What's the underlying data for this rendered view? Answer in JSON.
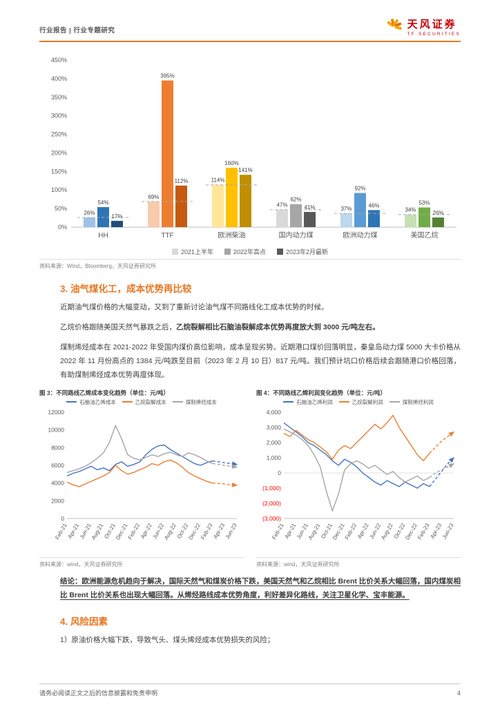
{
  "header": {
    "breadcrumb": "行业报告 | 行业专题研究",
    "brand_name": "天风证券",
    "brand_sub": "TF SECURITIES"
  },
  "bar_source": "资料来源：Wind，Bloomberg，天风证券研究所",
  "section3": {
    "title": "3. 油气煤化工，成本优势再比较",
    "para1": "近期油气煤价格的大幅变动，又到了重新讨论油气煤不同路线化工成本优势的时候。",
    "para2_normal": "乙烷价格跟随美国天然气暴跌之后，",
    "para2_bold": "乙烷裂解相比石脑油裂解成本优势再度放大到 3000 元/吨左右。",
    "para3": "煤制烯烃成本在 2021-2022 年受国内煤价高位影响，成本呈现劣势。近期港口煤价回落明显，秦皇岛动力煤 5000 大卡价格从 2022 年 11 月份高点的 1384 元/吨跌至目前（2023 年 2 月 10 日）817 元/吨。我们预计坑口价格后续会跟随港口价格回落，有助煤制烯烃成本优势再度体现。"
  },
  "fig3": {
    "caption": "图 3：不同路线乙烯成本变化趋势（单位：元/吨）",
    "source": "资料来源：wind，天风证券研究所"
  },
  "fig4": {
    "caption": "图 4：不同路线乙烯利润变化趋势（单位：元/吨）",
    "source": "资料来源：wind，天风证券研究所"
  },
  "conclusion": "结论：欧洲能源危机趋向于解决，国际天然气和煤炭价格下跌，美国天然气和乙烷相比 Brent 比价关系大幅回落，国内煤炭相比 Brent 比价关系也出现大幅回落。从烯烃路线成本优势角度，利好差异化路线，关注卫星化学、宝丰能源。",
  "section4": {
    "title": "4. 风险因素",
    "para1": "1）原油价格大幅下跌，导致气头、煤头烯烃成本优势损失的风险；"
  },
  "footer": {
    "disclaimer": "请务必阅读正文之后的信息披露和免责申明",
    "page": "4"
  },
  "chart_data": [
    {
      "type": "bar",
      "title": "",
      "categories": [
        "HH",
        "TTF",
        "欧洲柴油",
        "国内动力煤",
        "欧洲动力煤",
        "美国乙烷"
      ],
      "series": [
        {
          "name": "2021上半年",
          "values": [
            26,
            69,
            114,
            47,
            37,
            34
          ]
        },
        {
          "name": "2022年高点",
          "values": [
            54,
            395,
            160,
            62,
            92,
            53
          ]
        },
        {
          "name": "2023年2月最新",
          "values": [
            17,
            112,
            141,
            41,
            46,
            26
          ]
        }
      ],
      "unit": "%",
      "ylim": [
        0,
        450
      ],
      "ytick_step": 50,
      "ref_dashed_on_first_series": true,
      "group_colors": [
        [
          "#9dc3e6",
          "#2e75b6",
          "#1f4e79"
        ],
        [
          "#f8cbad",
          "#ed7d31",
          "#c55a11"
        ],
        [
          "#ffe699",
          "#ffc000",
          "#bf8f00"
        ],
        [
          "#d9d9d9",
          "#a6a6a6",
          "#595959"
        ],
        [
          "#bdd7ee",
          "#5b9bd5",
          "#2e75b6"
        ],
        [
          "#c6e0b4",
          "#70ad47",
          "#548235"
        ]
      ],
      "legend_colors": [
        "#d9d9d9",
        "#a6a6a6",
        "#595959"
      ]
    },
    {
      "type": "line",
      "title": "图 3：不同路线乙烯成本变化趋势（单位：元/吨）",
      "x_labels": [
        "Feb-21",
        "Apr-21",
        "Jun-21",
        "Aug-21",
        "Oct-21",
        "Dec-21",
        "Feb-22",
        "Apr-22",
        "Jun-22",
        "Aug-22",
        "Oct-22",
        "Dec-22",
        "Feb-23",
        "Apr-23",
        "Jun-23"
      ],
      "tick_every": 2,
      "ylim": [
        0,
        12000
      ],
      "yticks": [
        0,
        2000,
        4000,
        6000,
        8000,
        10000,
        12000
      ],
      "comma": false,
      "dash_from": 24,
      "series": [
        {
          "name": "石脑油乙烯成本",
          "color": "#4472c4",
          "values": [
            4800,
            5100,
            5300,
            5600,
            5900,
            5500,
            5700,
            5400,
            6100,
            6400,
            5900,
            6100,
            6400,
            7200,
            7800,
            8200,
            8300,
            7800,
            7400,
            7000,
            6600,
            6200,
            6000,
            6300,
            6500,
            6400,
            6300,
            6200,
            6100
          ]
        },
        {
          "name": "乙烷裂解成本",
          "color": "#ed7d31",
          "values": [
            4100,
            3800,
            3600,
            3900,
            4200,
            4500,
            4800,
            5200,
            6000,
            5400,
            5000,
            5200,
            5500,
            5800,
            6200,
            6000,
            6400,
            6600,
            6300,
            5800,
            5200,
            4800,
            4500,
            4200,
            4000,
            3950,
            3900,
            3820,
            3750
          ]
        },
        {
          "name": "煤制烯烃成本",
          "color": "#a5a5a5",
          "values": [
            5200,
            5400,
            5600,
            5900,
            6300,
            6800,
            7400,
            8600,
            10500,
            9000,
            7200,
            6800,
            6600,
            6900,
            7200,
            7000,
            7300,
            7500,
            7200,
            7000,
            7400,
            7200,
            6900,
            6500,
            6200,
            6100,
            6000,
            5900,
            5800
          ]
        }
      ]
    },
    {
      "type": "line",
      "title": "图 4：不同路线乙烯利润变化趋势（单位：元/吨）",
      "x_labels": [
        "Feb-21",
        "Apr-21",
        "Jun-21",
        "Aug-21",
        "Oct-21",
        "Dec-21",
        "Feb-22",
        "Apr-22",
        "Jun-22",
        "Aug-22",
        "Oct-22",
        "Dec-22",
        "Feb-23",
        "Apr-23",
        "Jun-23"
      ],
      "tick_every": 2,
      "ylim": [
        -3000,
        4000
      ],
      "yticks": [
        4000,
        3000,
        2000,
        1000,
        0,
        -1000,
        -2000,
        -3000
      ],
      "comma": true,
      "dash_from": 24,
      "series": [
        {
          "name": "石脑油乙烯利润",
          "color": "#4472c4",
          "values": [
            3300,
            3000,
            2700,
            2400,
            2000,
            1800,
            1500,
            1200,
            800,
            500,
            900,
            700,
            400,
            0,
            -300,
            -600,
            -800,
            -500,
            -700,
            -900,
            -600,
            -800,
            -1000,
            -700,
            -900,
            -400,
            100,
            600,
            1000
          ]
        },
        {
          "name": "乙烷裂解利润",
          "color": "#ed7d31",
          "values": [
            2600,
            2400,
            2800,
            2500,
            2200,
            2000,
            1700,
            1400,
            900,
            1500,
            1800,
            1600,
            2000,
            2400,
            2800,
            3200,
            2900,
            3300,
            3800,
            3000,
            2400,
            1800,
            1200,
            800,
            1300,
            1700,
            2100,
            2400,
            2700
          ]
        },
        {
          "name": "煤制烯烃利润",
          "color": "#a5a5a5",
          "values": [
            2900,
            2700,
            2500,
            2200,
            1800,
            1200,
            400,
            -1200,
            -2500,
            -1400,
            200,
            600,
            800,
            600,
            300,
            500,
            200,
            -100,
            100,
            -300,
            -600,
            -400,
            -200,
            -500,
            -300,
            0,
            200,
            400,
            600
          ]
        }
      ]
    }
  ]
}
